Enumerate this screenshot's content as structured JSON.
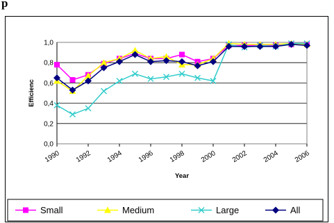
{
  "heading": "p",
  "chart_data": {
    "type": "line",
    "xlabel": "Year",
    "ylabel": "Efficienc",
    "ylim": [
      0,
      1
    ],
    "yticks": [
      "0,0",
      "0,2",
      "0,4",
      "0,6",
      "0,8",
      "1,0"
    ],
    "ytick_values": [
      0,
      0.2,
      0.4,
      0.6,
      0.8,
      1.0
    ],
    "xlim": [
      1990,
      2006
    ],
    "xticks": [
      "1990",
      "1992",
      "1994",
      "1996",
      "1998",
      "2000",
      "2002",
      "2004",
      "2006"
    ],
    "grid": "horizontal",
    "legend_position": "bottom",
    "x": [
      1990,
      1991,
      1992,
      1993,
      1994,
      1995,
      1996,
      1997,
      1998,
      1999,
      2000,
      2001,
      2002,
      2003,
      2004,
      2005,
      2006
    ],
    "series": [
      {
        "name": "Small",
        "color": "#ff00ff",
        "marker": "square",
        "values": [
          0.78,
          0.63,
          0.68,
          0.79,
          0.84,
          0.89,
          0.84,
          0.84,
          0.88,
          0.81,
          0.84,
          0.97,
          0.97,
          0.97,
          0.97,
          0.98,
          0.98
        ]
      },
      {
        "name": "Medium",
        "color": "#ffff00",
        "marker": "triangle",
        "values": [
          0.62,
          0.52,
          0.67,
          0.8,
          0.84,
          0.92,
          0.84,
          0.86,
          0.78,
          0.78,
          0.84,
          0.99,
          0.98,
          0.98,
          0.98,
          0.99,
          0.98
        ]
      },
      {
        "name": "Large",
        "color": "#33cccc",
        "marker": "x",
        "values": [
          0.38,
          0.29,
          0.35,
          0.52,
          0.62,
          0.69,
          0.64,
          0.66,
          0.69,
          0.65,
          0.62,
          0.98,
          0.95,
          0.97,
          0.96,
          0.99,
          0.99
        ]
      },
      {
        "name": "All",
        "color": "#000080",
        "marker": "diamond",
        "values": [
          0.65,
          0.53,
          0.62,
          0.75,
          0.81,
          0.88,
          0.81,
          0.82,
          0.81,
          0.77,
          0.81,
          0.96,
          0.96,
          0.96,
          0.96,
          0.98,
          0.97
        ]
      }
    ]
  }
}
